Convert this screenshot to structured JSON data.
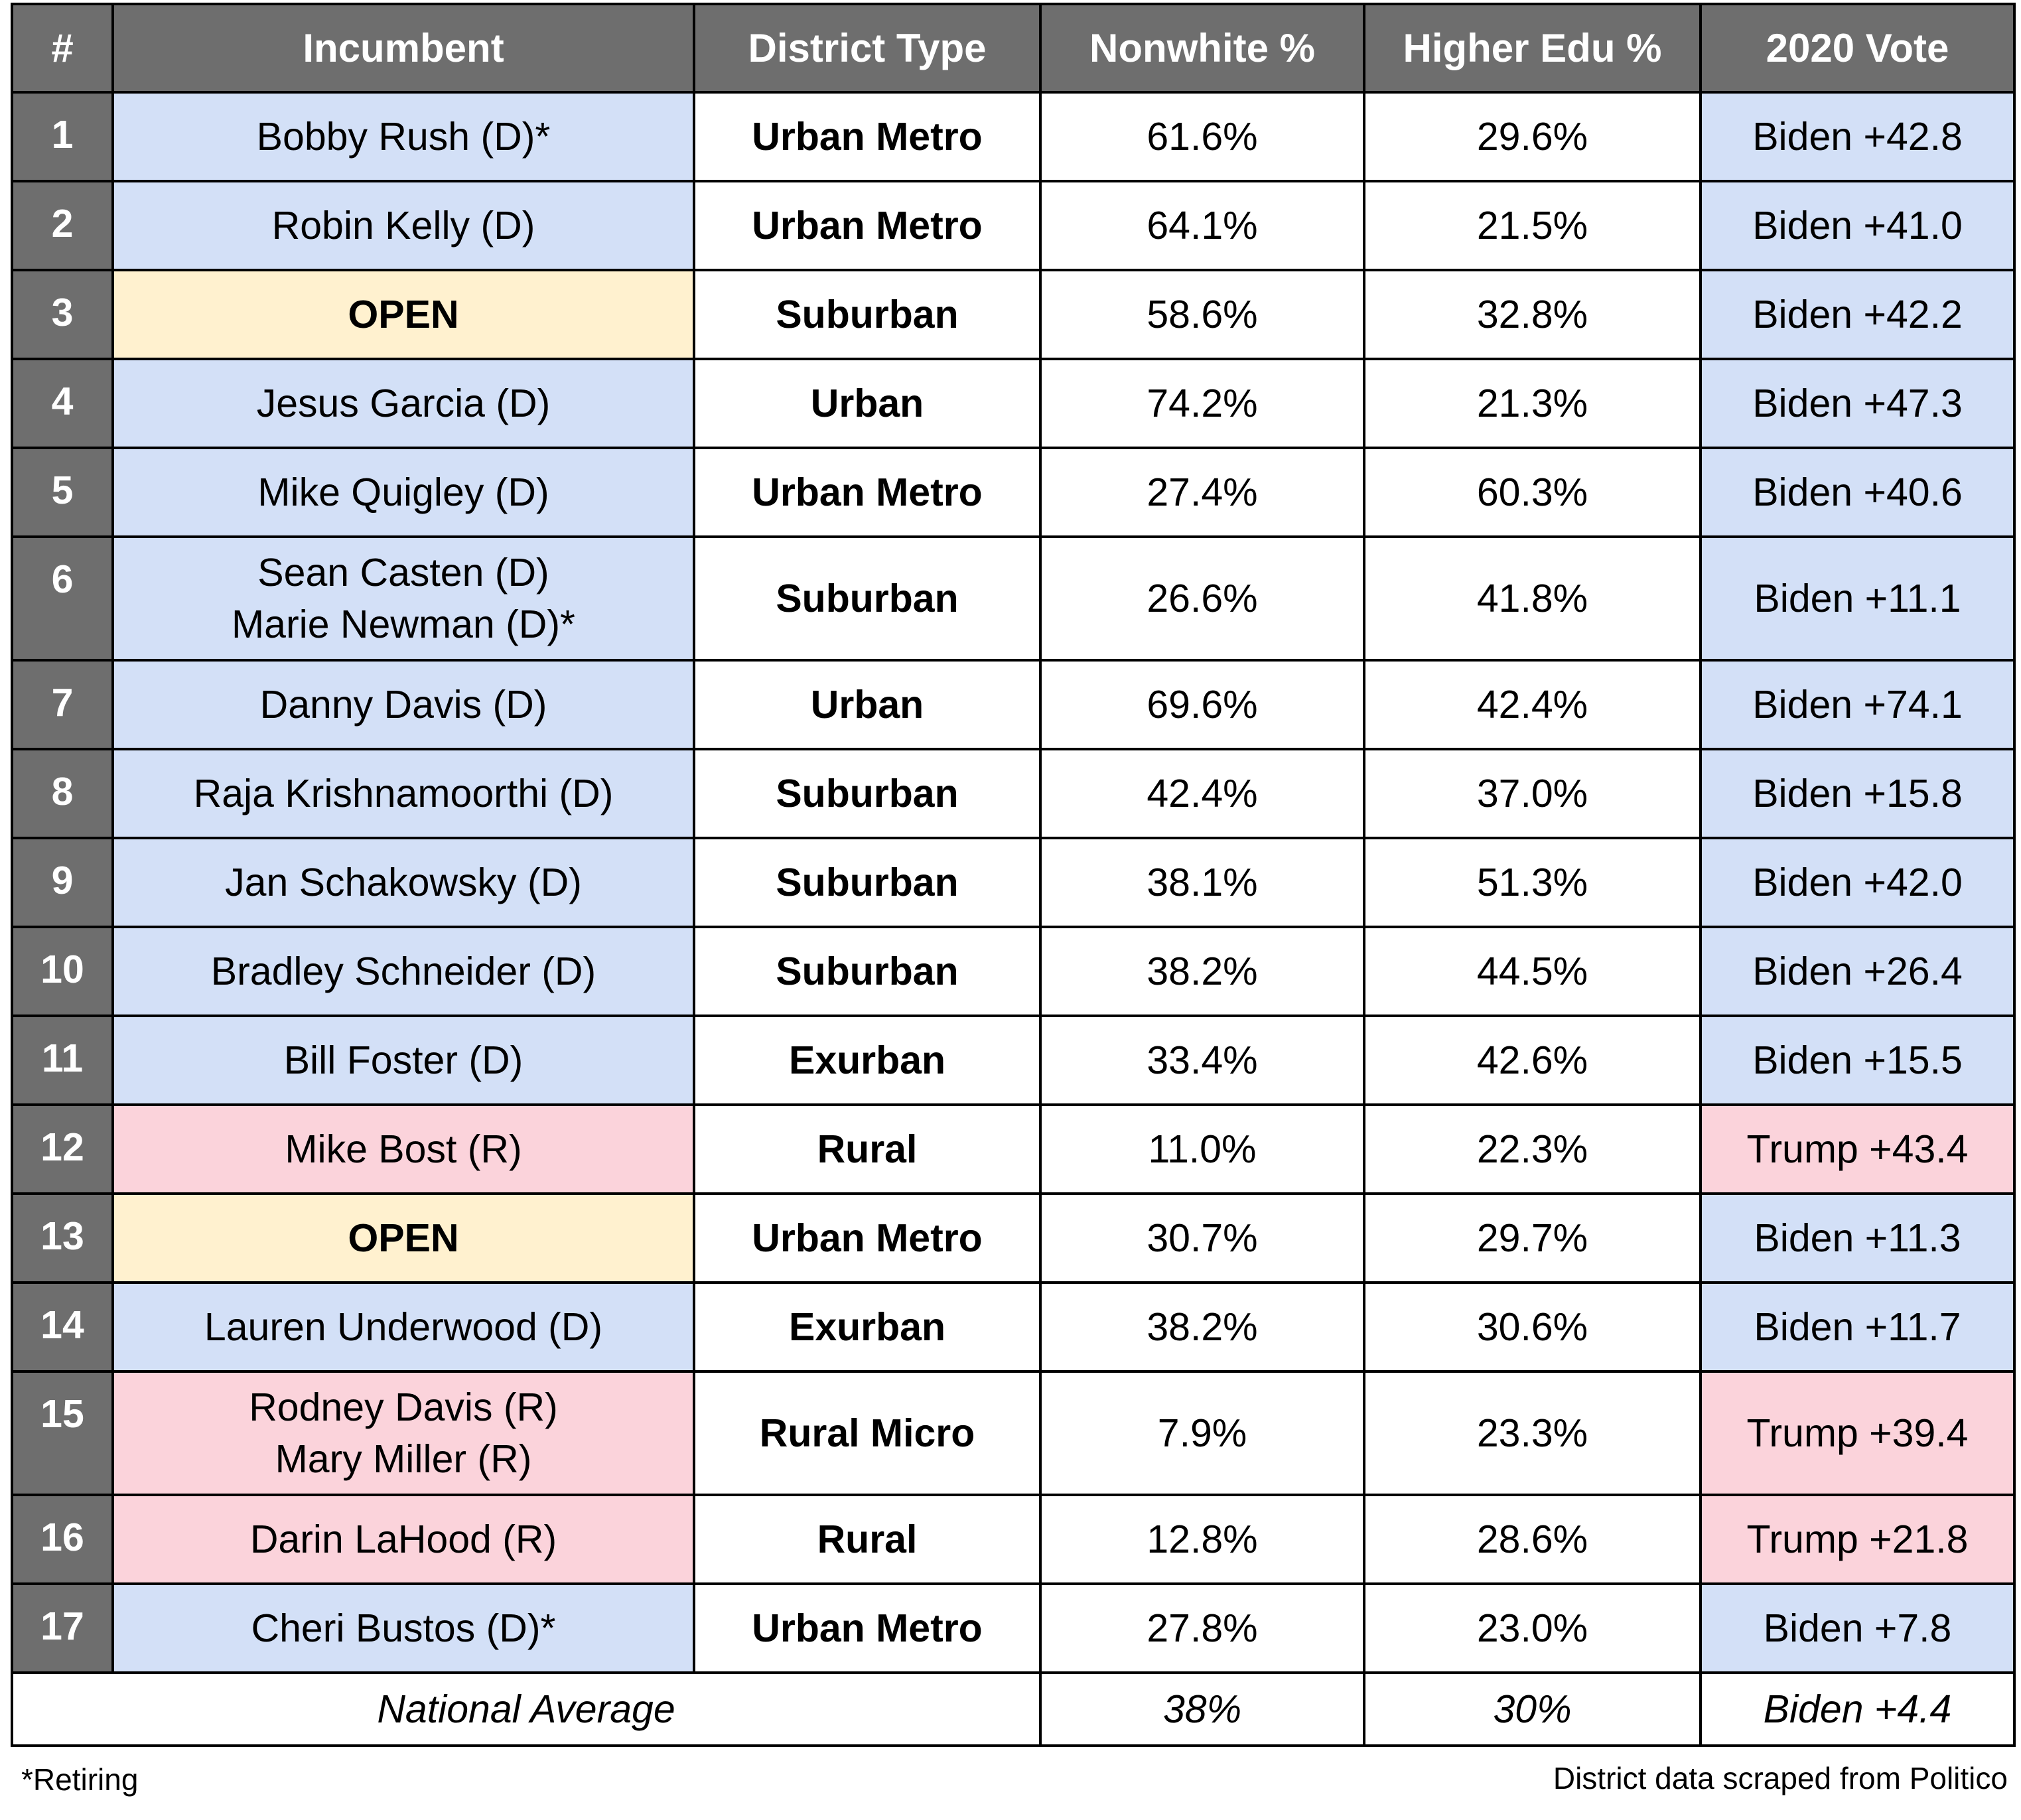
{
  "headers": [
    "#",
    "Incumbent",
    "District Type",
    "Nonwhite %",
    "Higher Edu %",
    "2020 Vote"
  ],
  "colors": {
    "header_bg": "#6e6e6e",
    "header_text": "#ffffff",
    "dem": "#d3e0f7",
    "rep": "#fbd3db",
    "open": "#fff1cf"
  },
  "rows": [
    {
      "num": "1",
      "incumbents": [
        "Bobby Rush (D)*"
      ],
      "party": "dem",
      "district_type": "Urban Metro",
      "nonwhite": "61.6%",
      "higher_edu": "29.6%",
      "vote": "Biden +42.8",
      "vote_party": "dem"
    },
    {
      "num": "2",
      "incumbents": [
        "Robin Kelly (D)"
      ],
      "party": "dem",
      "district_type": "Urban Metro",
      "nonwhite": "64.1%",
      "higher_edu": "21.5%",
      "vote": "Biden +41.0",
      "vote_party": "dem"
    },
    {
      "num": "3",
      "incumbents": [
        "OPEN"
      ],
      "party": "open",
      "district_type": "Suburban",
      "nonwhite": "58.6%",
      "higher_edu": "32.8%",
      "vote": "Biden +42.2",
      "vote_party": "dem"
    },
    {
      "num": "4",
      "incumbents": [
        "Jesus Garcia (D)"
      ],
      "party": "dem",
      "district_type": "Urban",
      "nonwhite": "74.2%",
      "higher_edu": "21.3%",
      "vote": "Biden +47.3",
      "vote_party": "dem"
    },
    {
      "num": "5",
      "incumbents": [
        "Mike Quigley (D)"
      ],
      "party": "dem",
      "district_type": "Urban Metro",
      "nonwhite": "27.4%",
      "higher_edu": "60.3%",
      "vote": "Biden +40.6",
      "vote_party": "dem"
    },
    {
      "num": "6",
      "incumbents": [
        "Sean Casten (D)",
        "Marie Newman (D)*"
      ],
      "party": "dem",
      "district_type": "Suburban",
      "nonwhite": "26.6%",
      "higher_edu": "41.8%",
      "vote": "Biden +11.1",
      "vote_party": "dem"
    },
    {
      "num": "7",
      "incumbents": [
        "Danny Davis (D)"
      ],
      "party": "dem",
      "district_type": "Urban",
      "nonwhite": "69.6%",
      "higher_edu": "42.4%",
      "vote": "Biden +74.1",
      "vote_party": "dem"
    },
    {
      "num": "8",
      "incumbents": [
        "Raja Krishnamoorthi (D)"
      ],
      "party": "dem",
      "district_type": "Suburban",
      "nonwhite": "42.4%",
      "higher_edu": "37.0%",
      "vote": "Biden +15.8",
      "vote_party": "dem"
    },
    {
      "num": "9",
      "incumbents": [
        "Jan Schakowsky (D)"
      ],
      "party": "dem",
      "district_type": "Suburban",
      "nonwhite": "38.1%",
      "higher_edu": "51.3%",
      "vote": "Biden +42.0",
      "vote_party": "dem"
    },
    {
      "num": "10",
      "incumbents": [
        "Bradley Schneider (D)"
      ],
      "party": "dem",
      "district_type": "Suburban",
      "nonwhite": "38.2%",
      "higher_edu": "44.5%",
      "vote": "Biden +26.4",
      "vote_party": "dem"
    },
    {
      "num": "11",
      "incumbents": [
        "Bill Foster (D)"
      ],
      "party": "dem",
      "district_type": "Exurban",
      "nonwhite": "33.4%",
      "higher_edu": "42.6%",
      "vote": "Biden +15.5",
      "vote_party": "dem"
    },
    {
      "num": "12",
      "incumbents": [
        "Mike Bost (R)"
      ],
      "party": "rep",
      "district_type": "Rural",
      "nonwhite": "11.0%",
      "higher_edu": "22.3%",
      "vote": "Trump +43.4",
      "vote_party": "rep"
    },
    {
      "num": "13",
      "incumbents": [
        "OPEN"
      ],
      "party": "open",
      "district_type": "Urban Metro",
      "nonwhite": "30.7%",
      "higher_edu": "29.7%",
      "vote": "Biden +11.3",
      "vote_party": "dem"
    },
    {
      "num": "14",
      "incumbents": [
        "Lauren Underwood (D)"
      ],
      "party": "dem",
      "district_type": "Exurban",
      "nonwhite": "38.2%",
      "higher_edu": "30.6%",
      "vote": "Biden +11.7",
      "vote_party": "dem"
    },
    {
      "num": "15",
      "incumbents": [
        "Rodney Davis (R)",
        "Mary Miller (R)"
      ],
      "party": "rep",
      "district_type": "Rural Micro",
      "nonwhite": "7.9%",
      "higher_edu": "23.3%",
      "vote": "Trump +39.4",
      "vote_party": "rep"
    },
    {
      "num": "16",
      "incumbents": [
        "Darin LaHood (R)"
      ],
      "party": "rep",
      "district_type": "Rural",
      "nonwhite": "12.8%",
      "higher_edu": "28.6%",
      "vote": "Trump +21.8",
      "vote_party": "rep"
    },
    {
      "num": "17",
      "incumbents": [
        "Cheri Bustos (D)*"
      ],
      "party": "dem",
      "district_type": "Urban Metro",
      "nonwhite": "27.8%",
      "higher_edu": "23.0%",
      "vote": "Biden +7.8",
      "vote_party": "dem"
    }
  ],
  "footer": {
    "label": "National Average",
    "nonwhite": "38%",
    "higher_edu": "30%",
    "vote": "Biden +4.4"
  },
  "notes": {
    "retiring": "*Retiring",
    "source": "District data scraped from Politico"
  }
}
